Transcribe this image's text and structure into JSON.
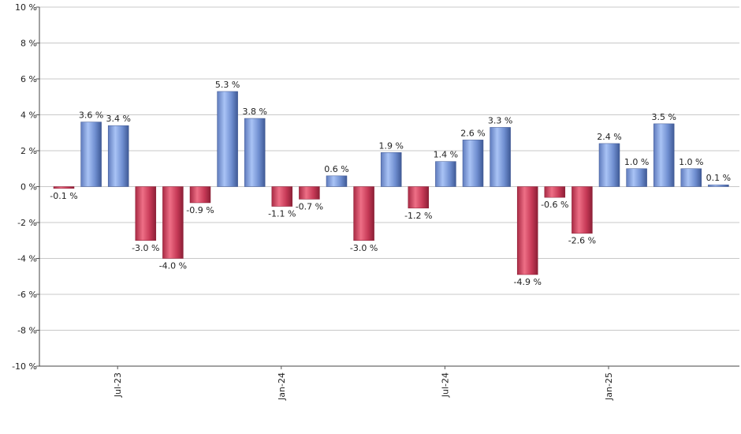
{
  "chart_data": {
    "type": "bar",
    "y_ticks": [
      "10 %",
      "8 %",
      "6 %",
      "4 %",
      "2 %",
      "0 %",
      "-2 %",
      "-4 %",
      "-6 %",
      "-8 %",
      "-10 %"
    ],
    "ylim": [
      -10,
      10
    ],
    "x_tick_labels": [
      {
        "label": "Jul-23",
        "bar_index": 2
      },
      {
        "label": "Jan-24",
        "bar_index": 8
      },
      {
        "label": "Jul-24",
        "bar_index": 14
      },
      {
        "label": "Jan-25",
        "bar_index": 20
      }
    ],
    "values": [
      -0.1,
      3.6,
      3.4,
      -3.0,
      -4.0,
      -0.9,
      5.3,
      3.8,
      -1.1,
      -0.7,
      0.6,
      -3.0,
      1.9,
      -1.2,
      1.4,
      2.6,
      3.3,
      -4.9,
      -0.6,
      -2.6,
      2.4,
      1.0,
      3.5,
      1.0,
      0.1
    ],
    "labels": [
      "-0.1 %",
      "3.6 %",
      "3.4 %",
      "-3.0 %",
      "-4.0 %",
      "-0.9 %",
      "5.3 %",
      "3.8 %",
      "-1.1 %",
      "-0.7 %",
      "0.6 %",
      "-3.0 %",
      "1.9 %",
      "-1.2 %",
      "1.4 %",
      "2.6 %",
      "3.3 %",
      "-4.9 %",
      "-0.6 %",
      "-2.6 %",
      "2.4 %",
      "1.0 %",
      "3.5 %",
      "1.0 %",
      "0.1 %"
    ],
    "grid": true,
    "colors": {
      "positive": "#7f9fe0",
      "negative": "#d0455f"
    }
  }
}
